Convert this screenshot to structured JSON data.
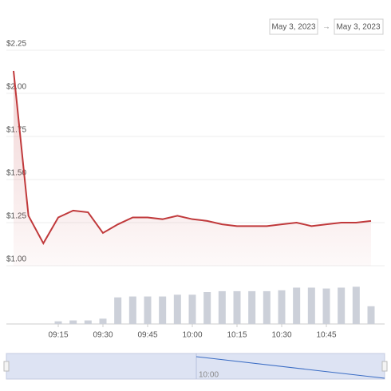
{
  "range_from": "May 3, 2023",
  "range_arrow": "→",
  "range_to": "May 3, 2023",
  "navigator": {
    "label": "10:00"
  },
  "chart_data": {
    "type": "line",
    "x": [
      "09:00",
      "09:05",
      "09:10",
      "09:15",
      "09:20",
      "09:25",
      "09:30",
      "09:35",
      "09:40",
      "09:45",
      "09:50",
      "09:55",
      "10:00",
      "10:05",
      "10:10",
      "10:15",
      "10:20",
      "10:25",
      "10:30",
      "10:35",
      "10:40",
      "10:45",
      "10:50",
      "10:55",
      "11:00"
    ],
    "series": [
      {
        "color": "#c0393b",
        "values": [
          2.13,
          1.29,
          1.13,
          1.28,
          1.32,
          1.31,
          1.19,
          1.24,
          1.28,
          1.28,
          1.27,
          1.29,
          1.27,
          1.26,
          1.24,
          1.23,
          1.23,
          1.23,
          1.24,
          1.25,
          1.23,
          1.24,
          1.25,
          1.25,
          1.26
        ]
      },
      {
        "type": "bar",
        "axis": "y2",
        "color": "#ccd0d9",
        "values": [
          null,
          null,
          null,
          3,
          4,
          4,
          6,
          30,
          31,
          31,
          31,
          33,
          33,
          36,
          37,
          37,
          37,
          37,
          38,
          41,
          41,
          40,
          41,
          42,
          20
        ]
      }
    ],
    "xlim": [
      "09:00",
      "11:00"
    ],
    "xticks": [
      "09:15",
      "09:30",
      "09:45",
      "10:00",
      "10:15",
      "10:30",
      "10:45"
    ],
    "ylim": [
      1,
      2.25
    ],
    "yticks": [
      {
        "value": 1,
        "label": "$1.00"
      },
      {
        "value": 1.25,
        "label": "$1.25"
      },
      {
        "value": 1.5,
        "label": "$1.50"
      },
      {
        "value": 1.75,
        "label": "$1.75"
      },
      {
        "value": 2,
        "label": "$2.00"
      },
      {
        "value": 2.25,
        "label": "$2.25"
      }
    ],
    "y2lim": [
      0,
      45
    ],
    "grid": true
  }
}
